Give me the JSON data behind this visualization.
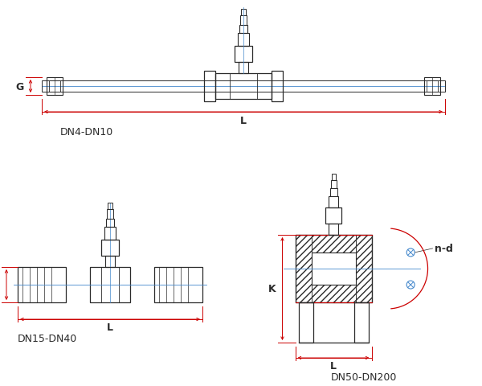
{
  "bg_color": "#ffffff",
  "line_color": "#2a2a2a",
  "dim_color_red": "#cc0000",
  "dim_color_blue": "#4488cc",
  "label_dn4": "DN4-DN10",
  "label_dn15": "DN15-DN40",
  "label_dn50": "DN50-DN200",
  "label_G": "G",
  "label_L": "L",
  "label_K": "K",
  "label_nd": "n-d",
  "figsize": [
    6.0,
    4.81
  ],
  "dpi": 100
}
